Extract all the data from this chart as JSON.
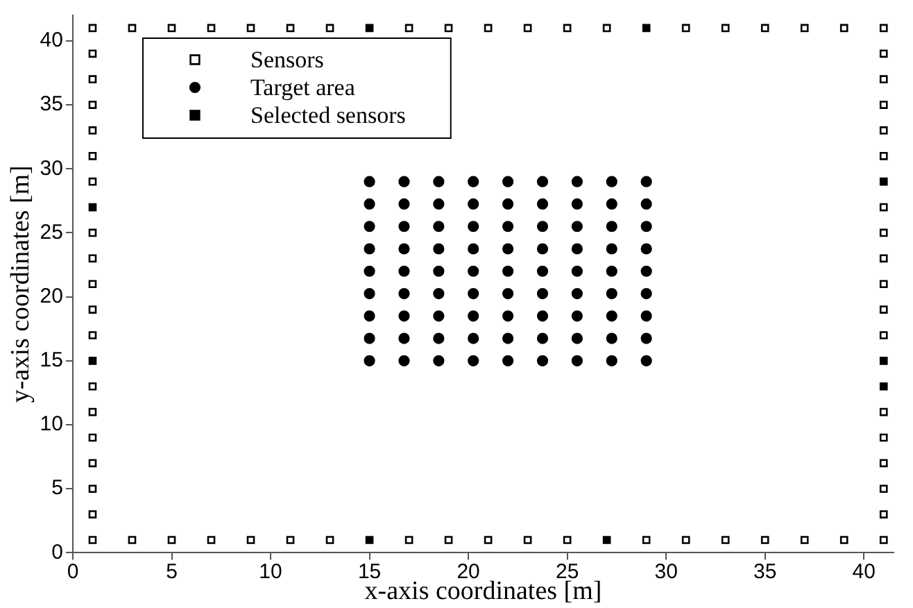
{
  "chart_data": {
    "type": "scatter",
    "xlabel": "x-axis coordinates [m]",
    "ylabel": "y-axis coordinates [m]",
    "xlim": [
      0,
      41.5
    ],
    "ylim": [
      0,
      42
    ],
    "xticks": [
      0,
      5,
      10,
      15,
      20,
      25,
      30,
      35,
      40
    ],
    "yticks": [
      0,
      5,
      10,
      15,
      20,
      25,
      30,
      35,
      40
    ],
    "grid": false,
    "legend": "top left",
    "series": [
      {
        "name": "Sensors",
        "color": "#ffffff",
        "marker": "square",
        "x": [
          1,
          3,
          5,
          7,
          9,
          11,
          13,
          17,
          19,
          21,
          23,
          25,
          27,
          31,
          33,
          35,
          37,
          39,
          41,
          1,
          3,
          5,
          7,
          9,
          11,
          13,
          17,
          19,
          21,
          23,
          25,
          29,
          31,
          33,
          35,
          37,
          39,
          41,
          1,
          1,
          1,
          1,
          1,
          1,
          1,
          1,
          1,
          1,
          1,
          1,
          1,
          1,
          1,
          1,
          1,
          41,
          41,
          41,
          41,
          41,
          41,
          41,
          41,
          41,
          41,
          41,
          41,
          41,
          41,
          41,
          41
        ],
        "values": [
          41,
          41,
          41,
          41,
          41,
          41,
          41,
          41,
          41,
          41,
          41,
          41,
          41,
          41,
          41,
          41,
          41,
          41,
          41,
          1,
          1,
          1,
          1,
          1,
          1,
          1,
          1,
          1,
          1,
          1,
          1,
          1,
          1,
          1,
          1,
          1,
          1,
          1,
          3,
          5,
          7,
          9,
          11,
          13,
          17,
          19,
          21,
          23,
          25,
          29,
          31,
          33,
          35,
          37,
          39,
          3,
          5,
          7,
          9,
          11,
          17,
          19,
          21,
          23,
          25,
          27,
          31,
          33,
          35,
          37,
          39
        ]
      },
      {
        "name": "Target area",
        "color": "#000000",
        "marker": "circle",
        "x": [
          15,
          16.75,
          18.5,
          20.25,
          22,
          23.75,
          25.5,
          27.25,
          29,
          15,
          16.75,
          18.5,
          20.25,
          22,
          23.75,
          25.5,
          27.25,
          29,
          15,
          16.75,
          18.5,
          20.25,
          22,
          23.75,
          25.5,
          27.25,
          29,
          15,
          16.75,
          18.5,
          20.25,
          22,
          23.75,
          25.5,
          27.25,
          29,
          15,
          16.75,
          18.5,
          20.25,
          22,
          23.75,
          25.5,
          27.25,
          29,
          15,
          16.75,
          18.5,
          20.25,
          22,
          23.75,
          25.5,
          27.25,
          29,
          15,
          16.75,
          18.5,
          20.25,
          22,
          23.75,
          25.5,
          27.25,
          29,
          15,
          16.75,
          18.5,
          20.25,
          22,
          23.75,
          25.5,
          27.25,
          29,
          15,
          16.75,
          18.5,
          20.25,
          22,
          23.75,
          25.5,
          27.25,
          29
        ],
        "values": [
          29,
          29,
          29,
          29,
          29,
          29,
          29,
          29,
          29,
          27.25,
          27.25,
          27.25,
          27.25,
          27.25,
          27.25,
          27.25,
          27.25,
          27.25,
          25.5,
          25.5,
          25.5,
          25.5,
          25.5,
          25.5,
          25.5,
          25.5,
          25.5,
          23.75,
          23.75,
          23.75,
          23.75,
          23.75,
          23.75,
          23.75,
          23.75,
          23.75,
          22,
          22,
          22,
          22,
          22,
          22,
          22,
          22,
          22,
          20.25,
          20.25,
          20.25,
          20.25,
          20.25,
          20.25,
          20.25,
          20.25,
          20.25,
          18.5,
          18.5,
          18.5,
          18.5,
          18.5,
          18.5,
          18.5,
          18.5,
          18.5,
          16.75,
          16.75,
          16.75,
          16.75,
          16.75,
          16.75,
          16.75,
          16.75,
          16.75,
          15,
          15,
          15,
          15,
          15,
          15,
          15,
          15,
          15
        ]
      },
      {
        "name": "Selected sensors",
        "color": "#000000",
        "marker": "square",
        "x": [
          15,
          29,
          15,
          27,
          1,
          1,
          41,
          41,
          41
        ],
        "values": [
          41,
          41,
          1,
          1,
          27,
          15,
          29,
          15,
          13
        ]
      }
    ]
  }
}
